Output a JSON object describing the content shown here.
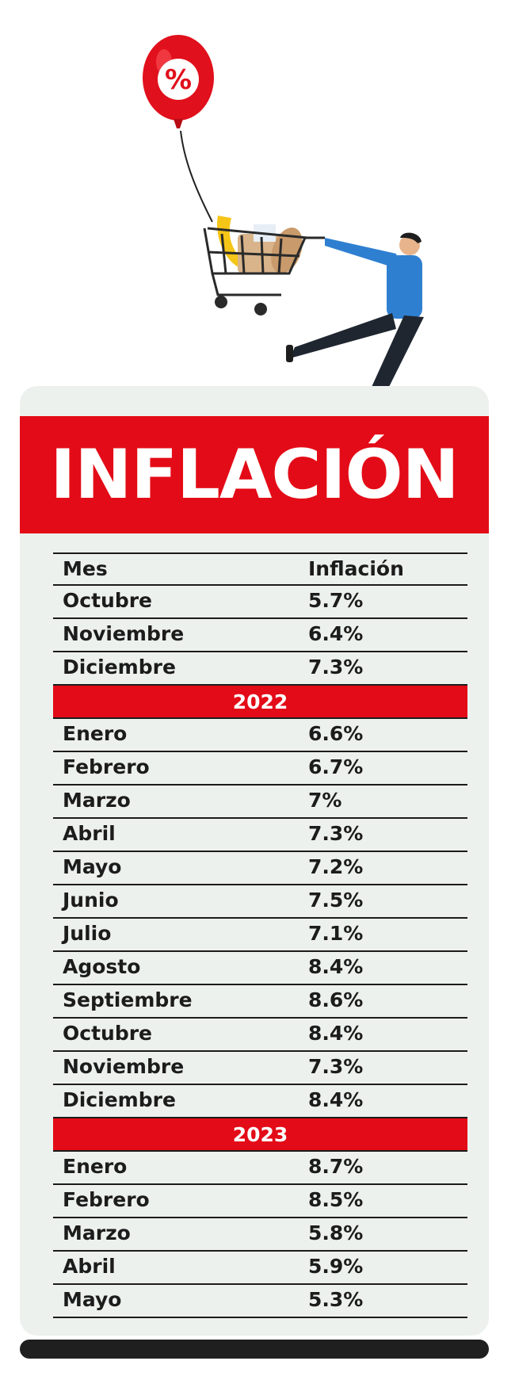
{
  "title": "INFLACIÓN",
  "colors": {
    "accent": "#e30b17",
    "card": "#edf1ee",
    "text": "#1c1c1c"
  },
  "illustration": {
    "balloon_symbol": "%"
  },
  "table": {
    "headers": {
      "month": "Mes",
      "value": "Inflación"
    },
    "sections": [
      {
        "year": null,
        "rows": [
          {
            "mes": "Octubre",
            "valor": "5.7%"
          },
          {
            "mes": "Noviembre",
            "valor": "6.4%"
          },
          {
            "mes": "Diciembre",
            "valor": "7.3%"
          }
        ]
      },
      {
        "year": "2022",
        "rows": [
          {
            "mes": "Enero",
            "valor": "6.6%"
          },
          {
            "mes": "Febrero",
            "valor": "6.7%"
          },
          {
            "mes": "Marzo",
            "valor": "7%"
          },
          {
            "mes": "Abril",
            "valor": "7.3%"
          },
          {
            "mes": "Mayo",
            "valor": "7.2%"
          },
          {
            "mes": "Junio",
            "valor": "7.5%"
          },
          {
            "mes": "Julio",
            "valor": "7.1%"
          },
          {
            "mes": "Agosto",
            "valor": "8.4%"
          },
          {
            "mes": "Septiembre",
            "valor": "8.6%"
          },
          {
            "mes": "Octubre",
            "valor": "8.4%"
          },
          {
            "mes": "Noviembre",
            "valor": "7.3%"
          },
          {
            "mes": "Diciembre",
            "valor": "8.4%"
          }
        ]
      },
      {
        "year": "2023",
        "rows": [
          {
            "mes": "Enero",
            "valor": "8.7%"
          },
          {
            "mes": "Febrero",
            "valor": "8.5%"
          },
          {
            "mes": "Marzo",
            "valor": "5.8%"
          },
          {
            "mes": "Abril",
            "valor": "5.9%"
          },
          {
            "mes": "Mayo",
            "valor": "5.3%"
          }
        ]
      }
    ]
  }
}
